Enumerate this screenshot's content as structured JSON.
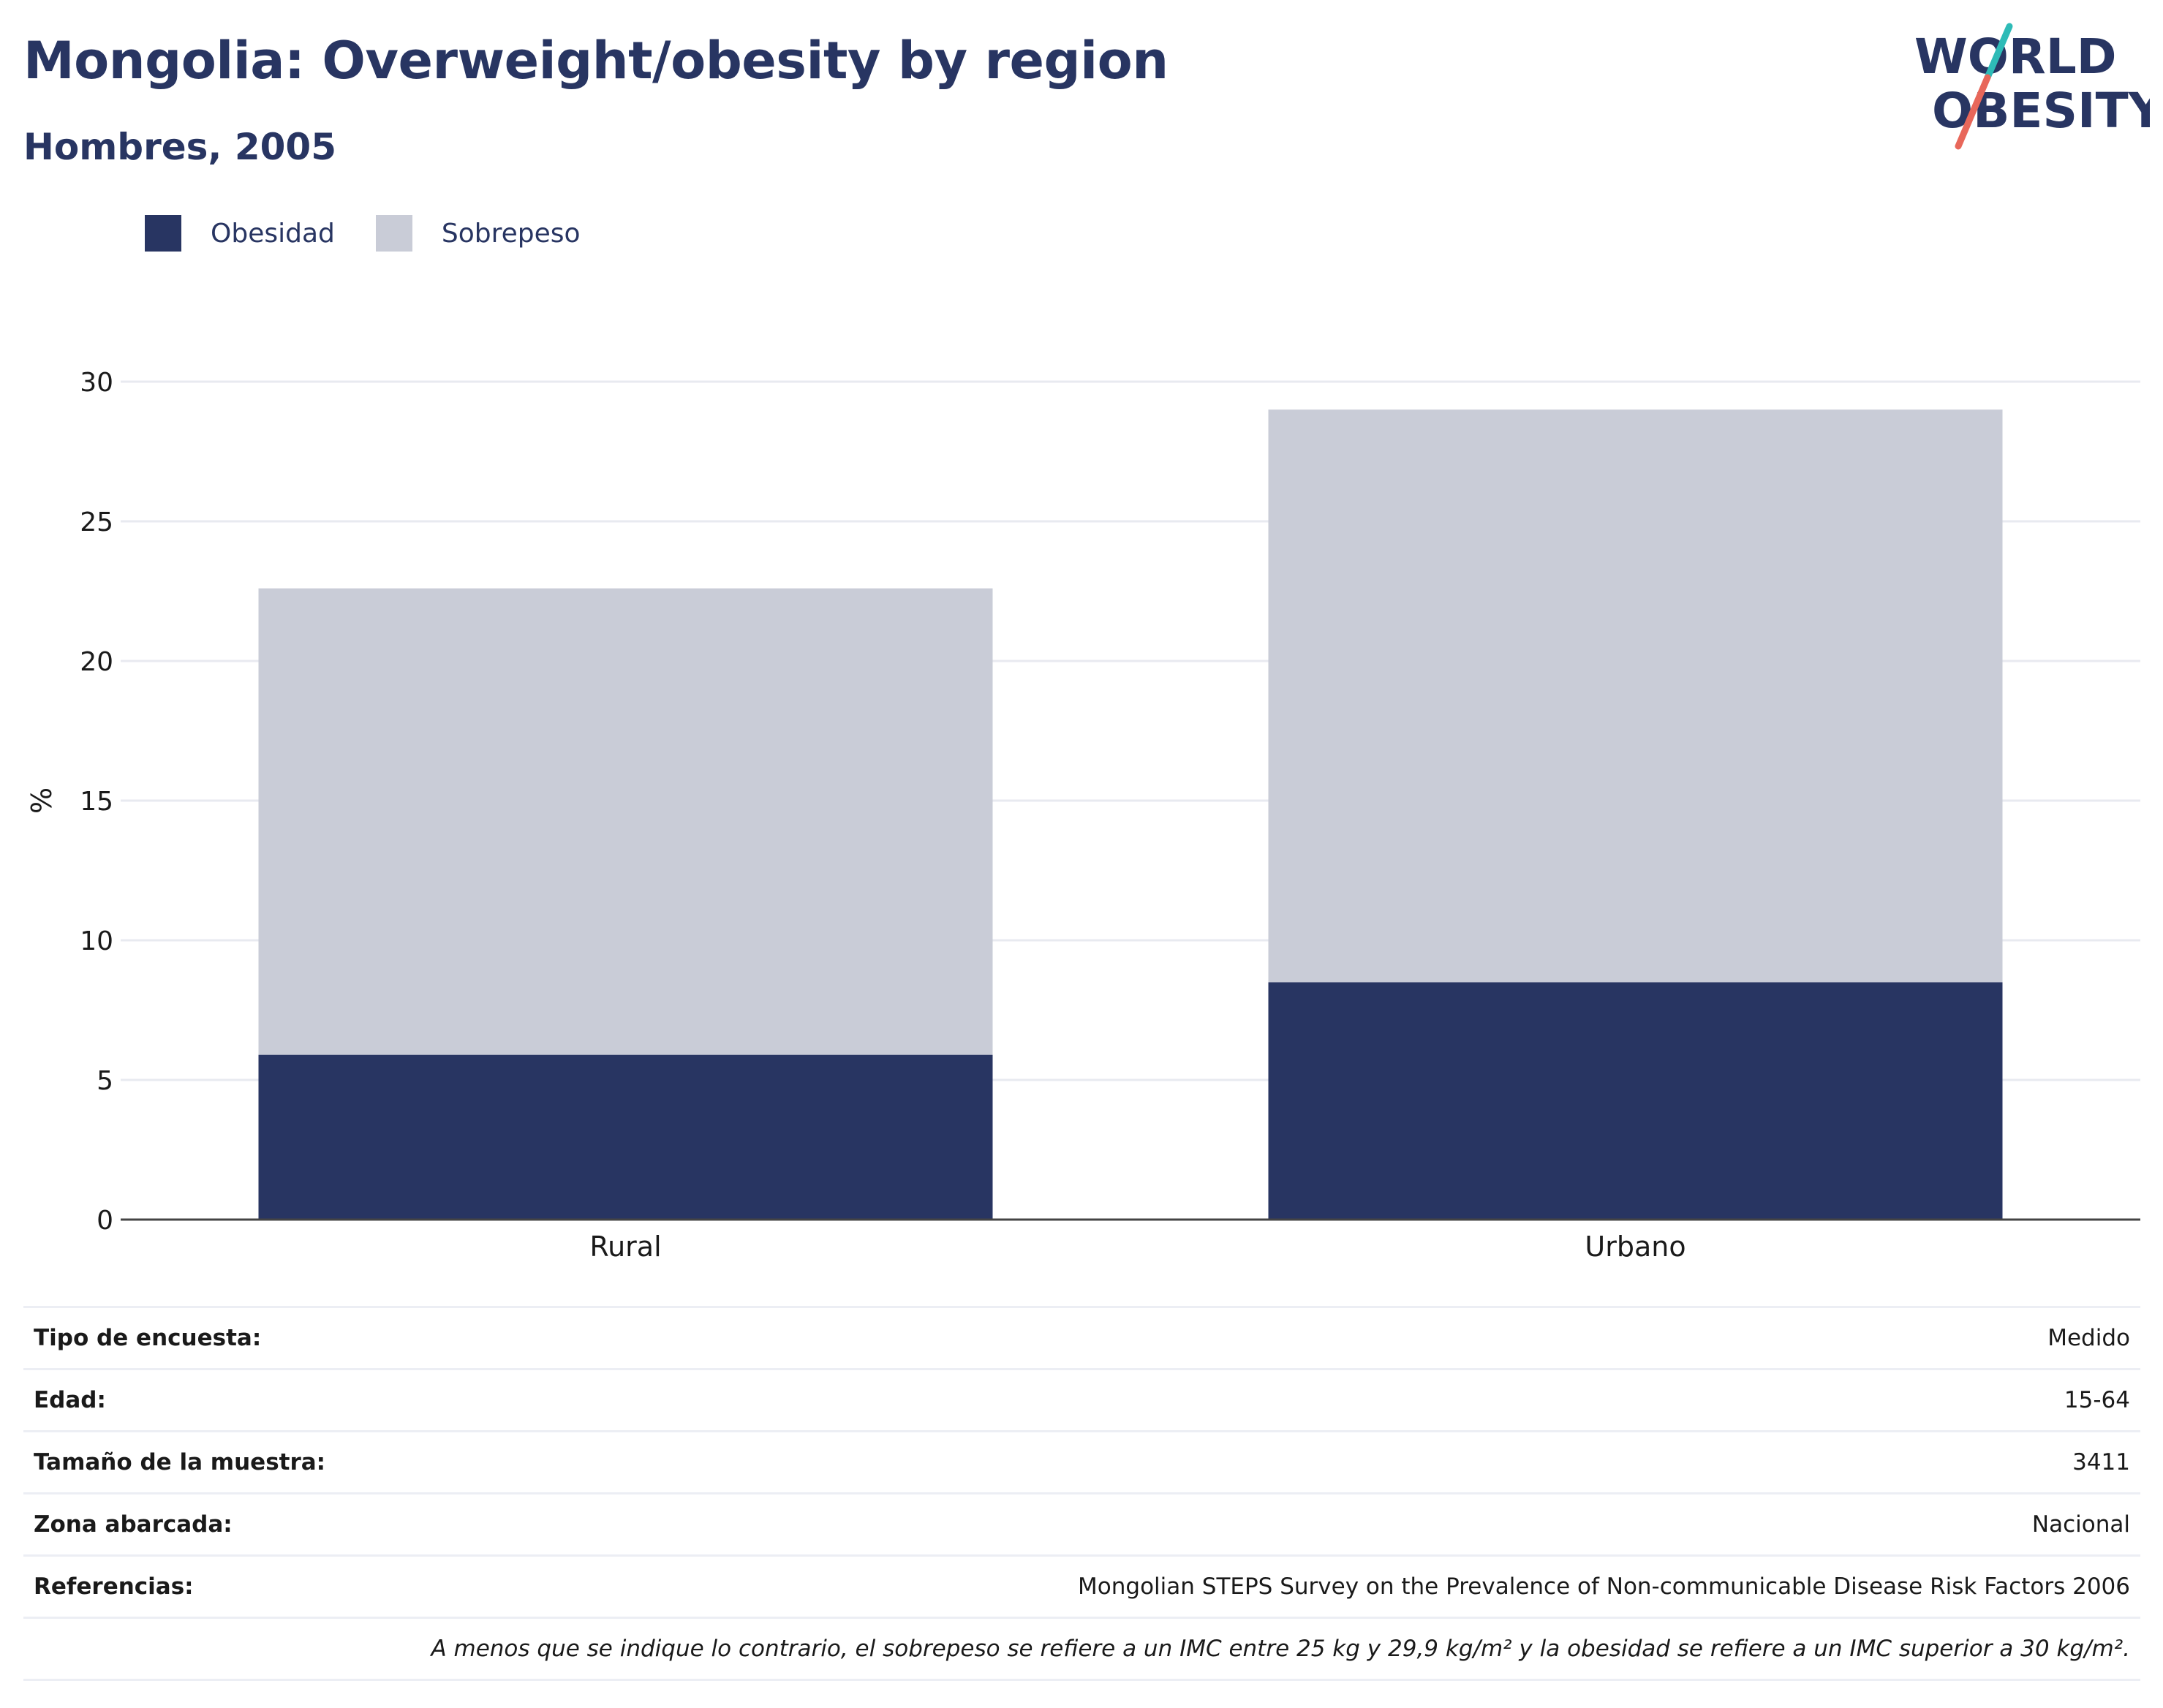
{
  "title": "Mongolia: Overweight/obesity by region",
  "subtitle": "Hombres, 2005",
  "logo": {
    "line1": "WORLD",
    "line2": "OBESITY"
  },
  "colors": {
    "obesidad": "#283562",
    "sobrepeso": "#c9ccd7",
    "text": "#283562",
    "accent_teal": "#2ebbb7",
    "accent_coral": "#e8675a"
  },
  "legend": [
    {
      "label": "Obesidad",
      "color": "#283562"
    },
    {
      "label": "Sobrepeso",
      "color": "#c9ccd7"
    }
  ],
  "chart_data": {
    "type": "bar",
    "stacked": true,
    "categories": [
      "Rural",
      "Urbano"
    ],
    "series": [
      {
        "name": "Obesidad",
        "values": [
          5.9,
          8.5
        ]
      },
      {
        "name": "Sobrepeso",
        "values": [
          16.7,
          20.5
        ]
      }
    ],
    "ylabel": "%",
    "ylim": [
      0,
      30
    ],
    "yticks": [
      0,
      5,
      10,
      15,
      20,
      25,
      30
    ],
    "grid": true,
    "legend_position": "top-left"
  },
  "info": [
    {
      "label": "Tipo de encuesta:",
      "value": "Medido"
    },
    {
      "label": "Edad:",
      "value": "15-64"
    },
    {
      "label": "Tamaño de la muestra:",
      "value": "3411"
    },
    {
      "label": "Zona abarcada:",
      "value": "Nacional"
    },
    {
      "label": "Referencias:",
      "value": "Mongolian STEPS Survey on the Prevalence of Non-communicable Disease Risk Factors 2006"
    }
  ],
  "note": "A menos que se indique lo contrario, el sobrepeso se refiere a un IMC entre 25 kg y 29,9 kg/m² y la obesidad se refiere a un IMC superior a 30 kg/m²."
}
